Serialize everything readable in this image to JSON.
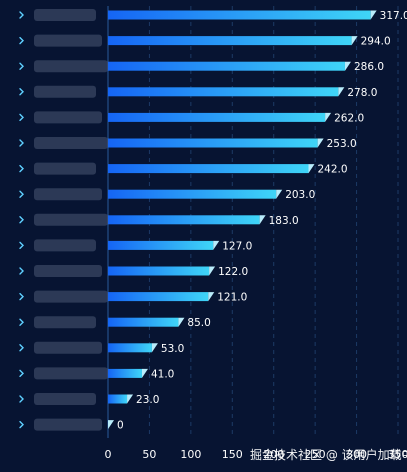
{
  "chart_data": {
    "type": "bar",
    "orientation": "horizontal",
    "categories": [
      "",
      "",
      "",
      "",
      "",
      "",
      "",
      "",
      "",
      "",
      "",
      "",
      "",
      "",
      "",
      "",
      ""
    ],
    "values": [
      317,
      294,
      286,
      278,
      262,
      253,
      242,
      203,
      183,
      127,
      122,
      121,
      85,
      53,
      41,
      23,
      0
    ],
    "value_labels": [
      "317.0",
      "294.0",
      "286.0",
      "278.0",
      "262.0",
      "253.0",
      "242.0",
      "203.0",
      "183.0",
      "127.0",
      "122.0",
      "121.0",
      "85.0",
      "53.0",
      "41.0",
      "23.0",
      "0"
    ],
    "x_ticks": [
      "0",
      "50",
      "100",
      "150",
      "200",
      "250",
      "300",
      "350"
    ],
    "xlim": [
      0,
      350
    ],
    "grid": true,
    "colors": {
      "background": "#071432",
      "bar_start": "#1565f5",
      "bar_end": "#3fd5f7",
      "bar_tip": "#b8ecfb",
      "label": "#ffffff",
      "tick": "#ffffff",
      "grid": "#1c3a66",
      "axis": "#2a5a9a",
      "chevron": "#5fd0ff",
      "blurred_label": "#4a5874"
    },
    "row_marker_icon": "chevron-right-icon"
  },
  "overlay_text": "掘金技术社区 @ 该用户加载中"
}
